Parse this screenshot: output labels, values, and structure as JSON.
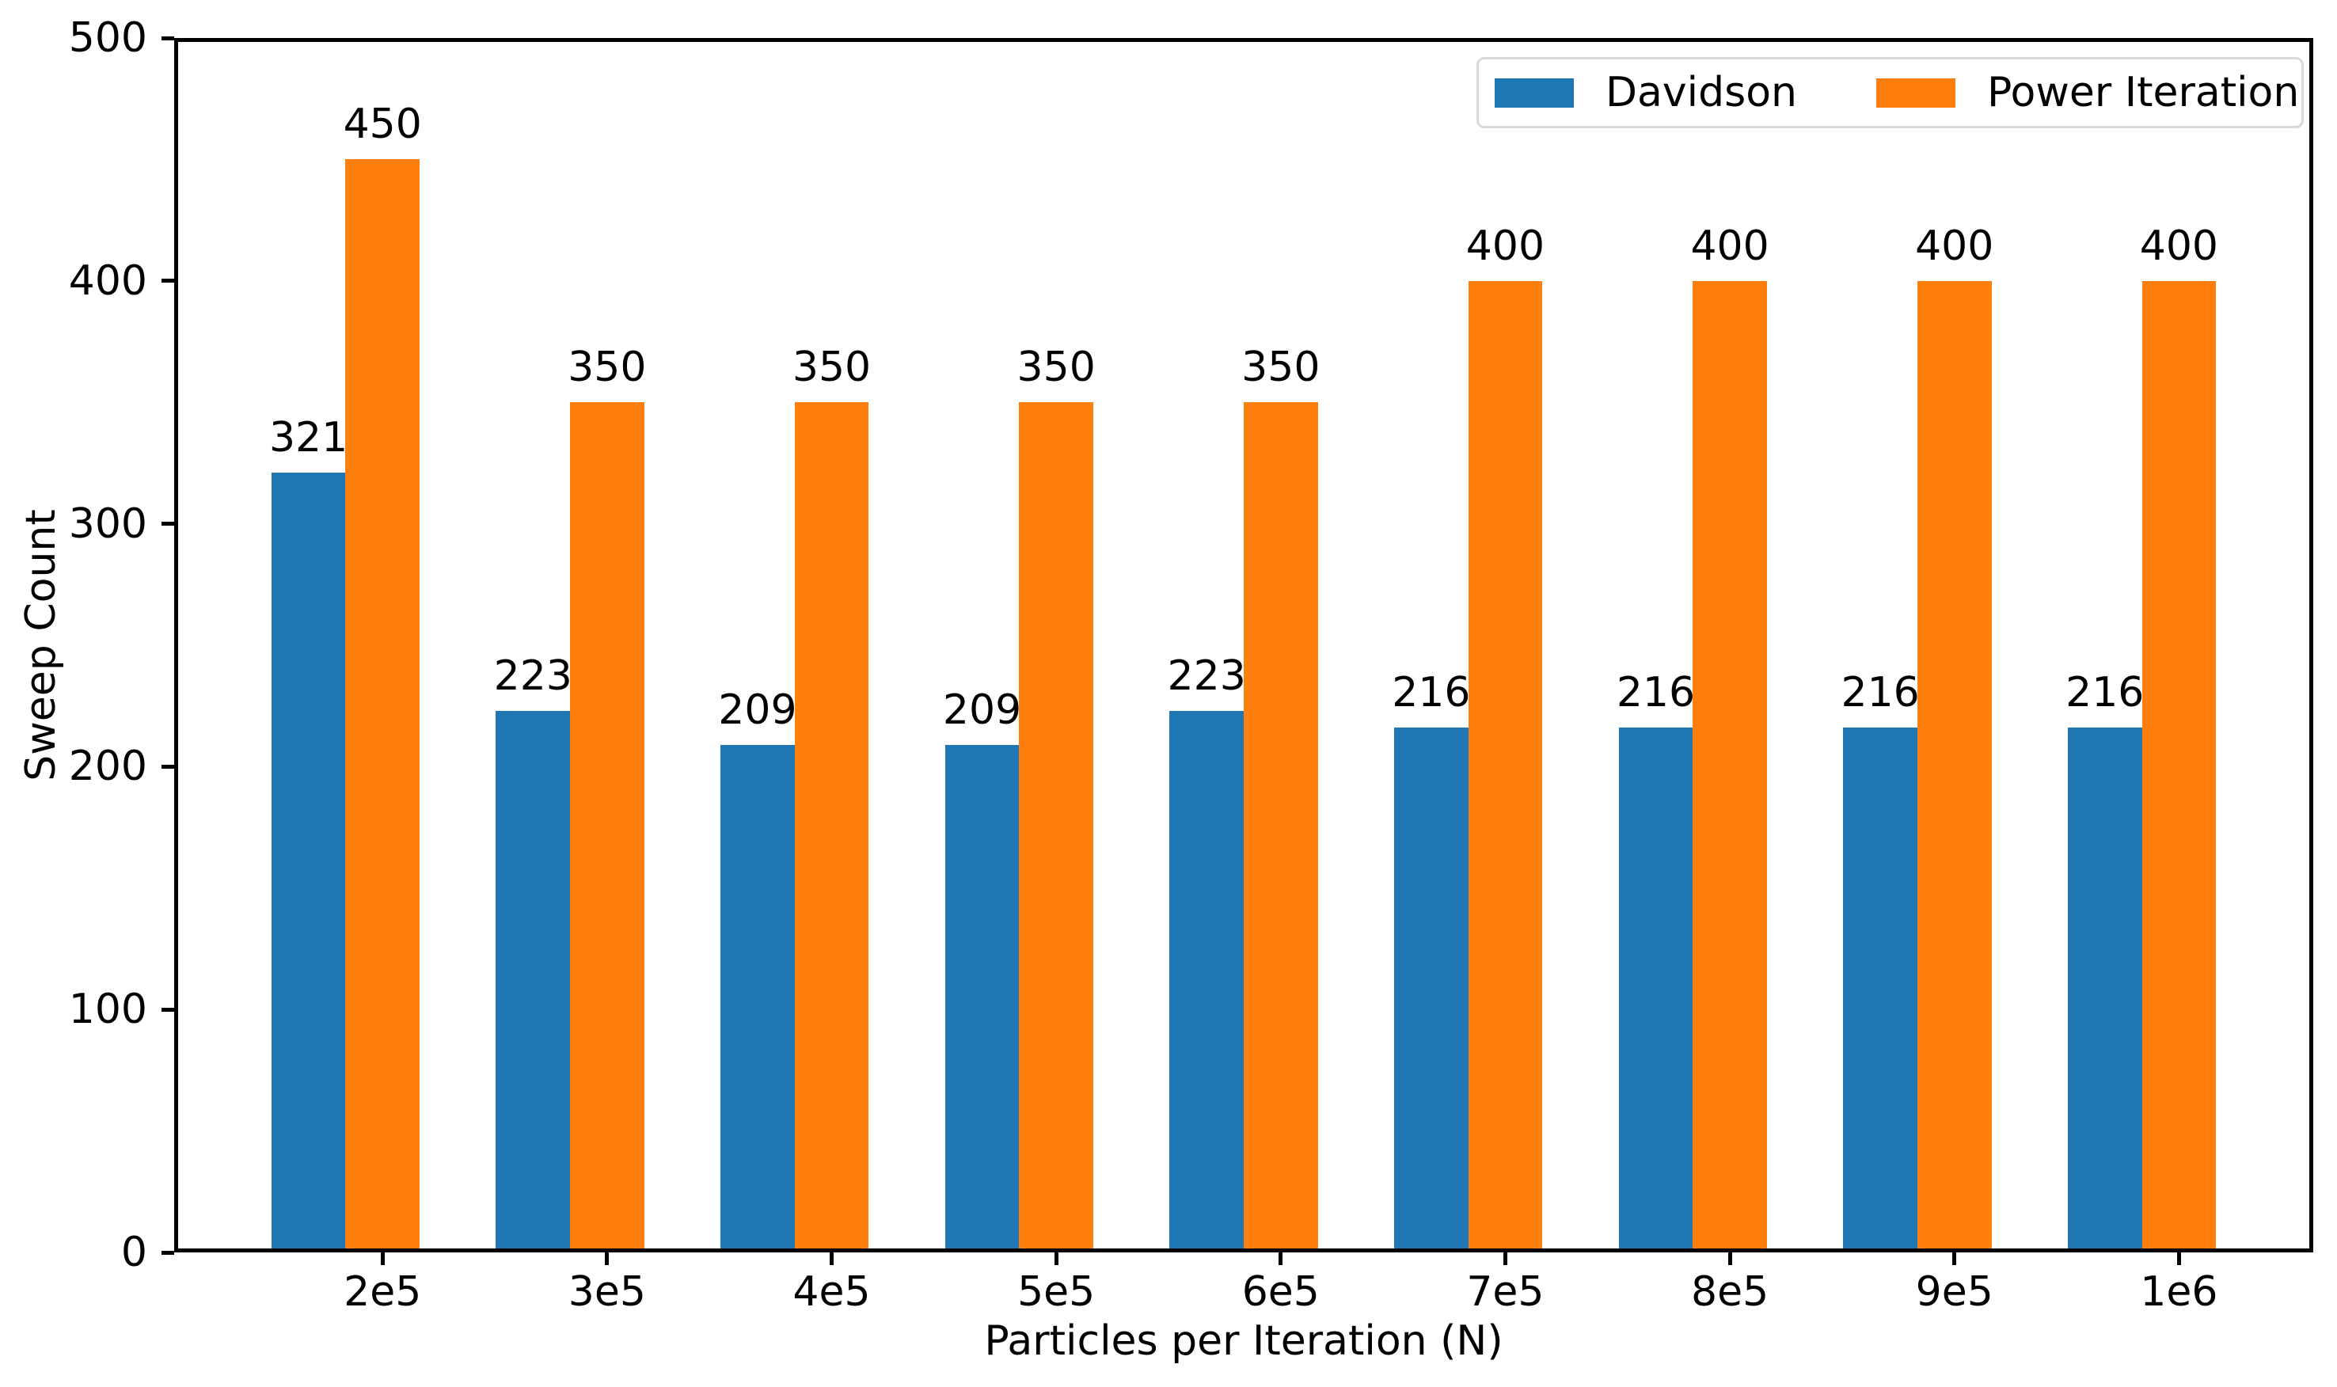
{
  "chart_data": {
    "type": "bar",
    "title": "",
    "xlabel": "Particles per Iteration (N)",
    "ylabel": "Sweep Count",
    "categories": [
      "2e5",
      "3e5",
      "4e5",
      "5e5",
      "6e5",
      "7e5",
      "8e5",
      "9e5",
      "1e6"
    ],
    "series": [
      {
        "name": "Davidson",
        "color": "#1f77b4",
        "values": [
          321,
          223,
          209,
          209,
          223,
          216,
          216,
          216,
          216
        ]
      },
      {
        "name": "Power Iteration",
        "color": "#ff7f0e",
        "values": [
          450,
          350,
          350,
          350,
          350,
          400,
          400,
          400,
          400
        ]
      }
    ],
    "ylim": [
      0,
      500
    ],
    "yticks": [
      0,
      100,
      200,
      300,
      400,
      500
    ],
    "grid": false,
    "bar_value_labels": true,
    "legend_position": "upper right",
    "colors": {
      "background": "#ffffff",
      "spine": "#000000",
      "text": "#000000",
      "legend_border": "#d9d9d9"
    }
  }
}
